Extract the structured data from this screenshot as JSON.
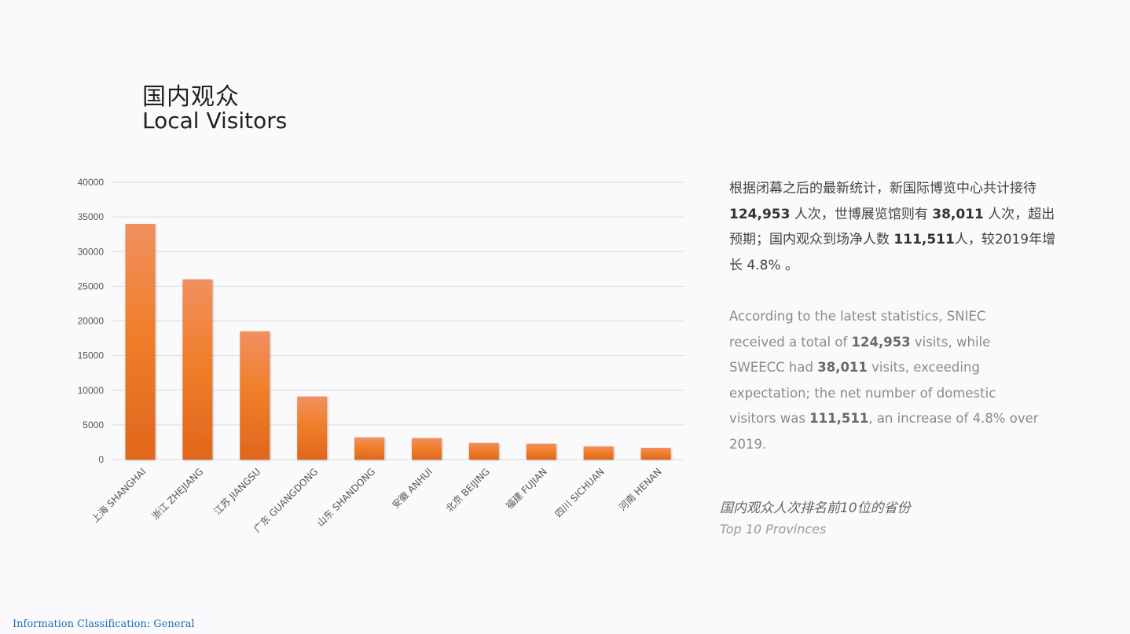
{
  "title": {
    "zh": "国内观众",
    "en": "Local Visitors"
  },
  "description": {
    "zh": {
      "p1": "根据闭幕之后的最新统计，新国际博览中心共计接待 ",
      "v1": "124,953",
      "p2": " 人次，世博展览馆则有 ",
      "v2": "38,011",
      "p3": " 人次，超出预期；国内观众到场净人数 ",
      "v3": "111,511",
      "p4": "人，较2019年增长 4.8% 。"
    },
    "en": {
      "p1": "According to the latest statistics, SNIEC received a total of ",
      "v1": "124,953",
      "p2": " visits, while SWEECC had ",
      "v2": "38,011",
      "p3": " visits, exceeding expectation; the net number of domestic visitors was ",
      "v3": "111,511",
      "p4": ", an increase of 4.8% over 2019."
    }
  },
  "caption": {
    "zh": "国内观众人次排名前10位的省份",
    "en": "Top 10 Provinces"
  },
  "footer": "Information Classification: General",
  "colors": {
    "bar_top": "#f09060",
    "bar_mid": "#f07f2a",
    "bar_bottom": "#e0661c",
    "grid": "#dcdcdc"
  },
  "chart_data": {
    "type": "bar",
    "categories": [
      "上海 SHANGHAI",
      "浙江 ZHEJIANG",
      "江苏 JIANGSU",
      "广东 GUANGDONG",
      "山东 SHANDONG",
      "安徽 ANHUI",
      "北京 BEIJING",
      "福建 FUJIAN",
      "四川 SICHUAN",
      "河南 HENAN"
    ],
    "values": [
      34000,
      26000,
      18500,
      9100,
      3200,
      3100,
      2400,
      2300,
      1900,
      1700
    ],
    "ylim": [
      0,
      40000
    ],
    "yticks": [
      0,
      5000,
      10000,
      15000,
      20000,
      25000,
      30000,
      35000,
      40000
    ],
    "grid": true
  }
}
